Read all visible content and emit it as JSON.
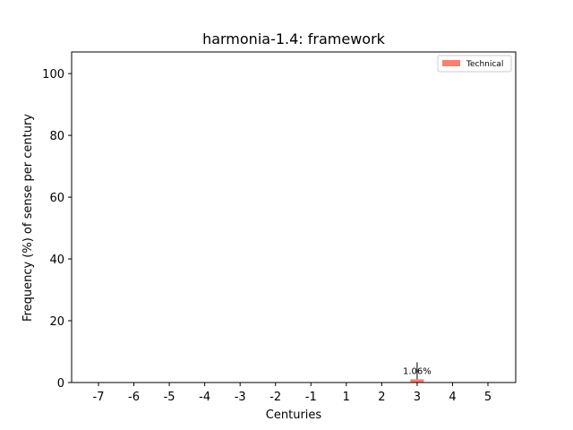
{
  "chart_data": {
    "type": "bar",
    "title": "harmonia-1.4: framework",
    "xlabel": "Centuries",
    "ylabel": "Frequency (%) of sense per century",
    "categories": [
      "-7",
      "-6",
      "-5",
      "-4",
      "-3",
      "-2",
      "-1",
      "1",
      "2",
      "3",
      "4",
      "5"
    ],
    "series": [
      {
        "name": "Technical",
        "color": "#fa8072",
        "values": [
          0,
          0,
          0,
          0,
          0,
          0,
          0,
          0,
          0,
          1.06,
          0,
          0
        ],
        "error": [
          0,
          0,
          0,
          0,
          0,
          0,
          0,
          0,
          0,
          5.5,
          0,
          0
        ]
      }
    ],
    "data_labels": [
      {
        "category": "3",
        "text": "1.06%"
      }
    ],
    "yticks": [
      0,
      20,
      40,
      60,
      80,
      100
    ],
    "ylim": [
      0,
      107
    ],
    "grid": false,
    "legend_position": "top-right"
  }
}
